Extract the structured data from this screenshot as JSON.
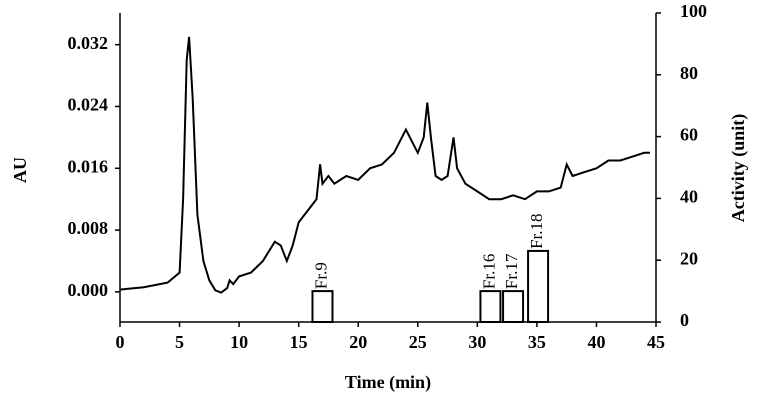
{
  "chart_data": [
    {
      "type": "line",
      "xlabel": "Time (min)",
      "ylabel": "AU",
      "x": [
        0,
        2,
        4,
        5,
        5.3,
        5.6,
        5.8,
        6.1,
        6.5,
        7,
        7.5,
        8,
        8.5,
        9,
        9.2,
        9.5,
        10,
        11,
        12,
        13,
        13.5,
        14,
        14.5,
        15,
        16,
        16.5,
        16.8,
        17,
        17.5,
        18,
        19,
        20,
        21,
        22,
        23,
        24,
        24.5,
        25,
        25.5,
        25.8,
        26.1,
        26.5,
        27,
        27.5,
        28,
        28.3,
        29,
        30,
        31,
        32,
        33,
        34,
        35,
        36,
        37,
        37.5,
        38,
        39,
        40,
        41,
        42,
        43,
        44,
        44.5
      ],
      "series": [
        {
          "color": "#000000",
          "values": [
            0.0003,
            0.0006,
            0.0012,
            0.0025,
            0.012,
            0.03,
            0.033,
            0.025,
            0.01,
            0.004,
            0.0015,
            0.0002,
            -0.0001,
            0.0005,
            0.0015,
            0.001,
            0.002,
            0.0025,
            0.004,
            0.0065,
            0.006,
            0.004,
            0.006,
            0.009,
            0.011,
            0.012,
            0.0165,
            0.014,
            0.015,
            0.014,
            0.015,
            0.0145,
            0.016,
            0.0165,
            0.018,
            0.021,
            0.0195,
            0.018,
            0.02,
            0.0245,
            0.02,
            0.015,
            0.0145,
            0.015,
            0.02,
            0.016,
            0.014,
            0.013,
            0.012,
            0.012,
            0.0125,
            0.012,
            0.013,
            0.013,
            0.0135,
            0.0165,
            0.015,
            0.0155,
            0.016,
            0.017,
            0.017,
            0.0175,
            0.018,
            0.018
          ]
        }
      ],
      "xlim": [
        0,
        45
      ],
      "xticks": [
        0,
        5,
        10,
        15,
        20,
        25,
        30,
        35,
        40,
        45
      ],
      "ylim": [
        -0.0039,
        0.0361
      ],
      "yticks": [
        {
          "value": 0,
          "label": "0.000"
        },
        {
          "value": 0.008,
          "label": "0.008"
        },
        {
          "value": 0.016,
          "label": "0.016"
        },
        {
          "value": 0.024,
          "label": "0.024"
        },
        {
          "value": 0.032,
          "label": "0.032"
        }
      ]
    },
    {
      "type": "bar",
      "axis": "y2",
      "y2label": "Activity (unit)",
      "color": "#000000",
      "categories": [
        "Fr.9",
        "Fr.16",
        "Fr.17",
        "Fr.18"
      ],
      "x": [
        17,
        31.1,
        33,
        35.1
      ],
      "values": [
        10,
        10,
        10,
        23
      ],
      "y2lim": [
        0,
        100
      ],
      "y2ticks": [
        0,
        20,
        40,
        60,
        80,
        100
      ]
    }
  ]
}
